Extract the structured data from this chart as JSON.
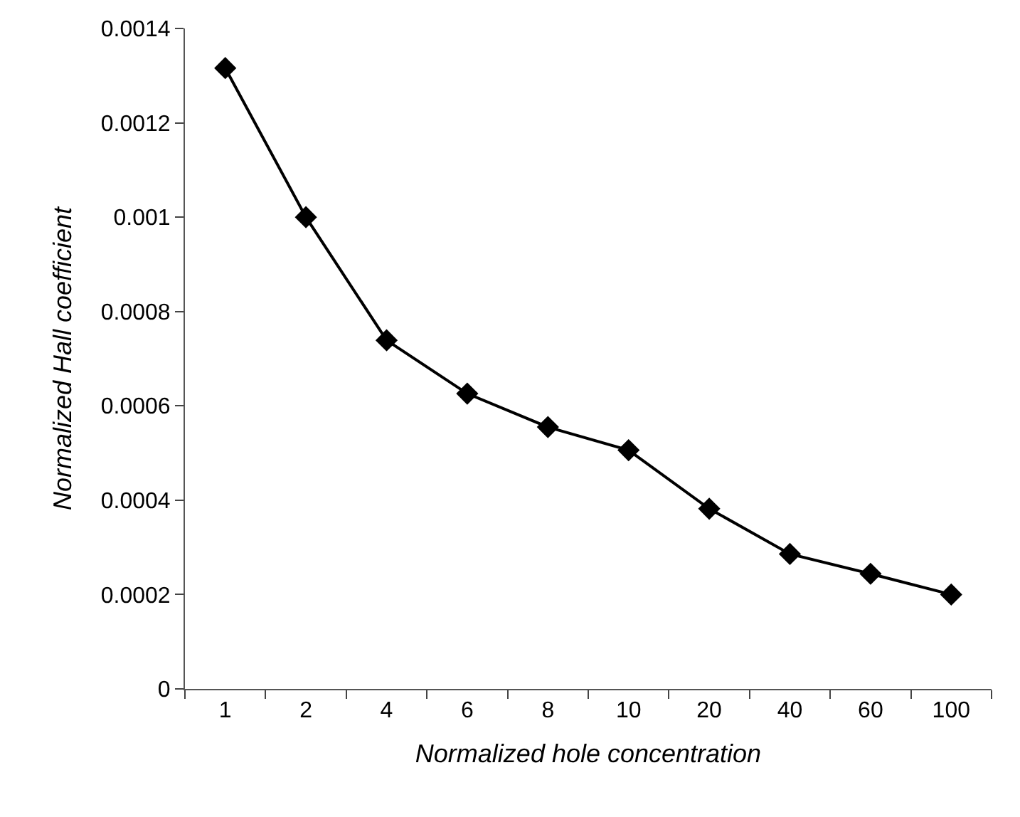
{
  "chart_data": {
    "type": "line",
    "xlabel": "Normalized hole concentration",
    "ylabel": "Normalized Hall coefficient",
    "categories": [
      "1",
      "2",
      "4",
      "6",
      "8",
      "10",
      "20",
      "40",
      "60",
      "100"
    ],
    "series": [
      {
        "color": "#000000",
        "values": [
          0.001316,
          0.001,
          0.000739,
          0.000626,
          0.000555,
          0.000506,
          0.000382,
          0.000286,
          0.000244,
          0.0002
        ]
      }
    ],
    "ylim": [
      0,
      0.0014
    ],
    "yticks": [
      0,
      0.0002,
      0.0004,
      0.0006,
      0.0008,
      0.001,
      0.0012,
      0.0014
    ],
    "marker": "diamond",
    "line_style": "solid",
    "legend": false
  }
}
